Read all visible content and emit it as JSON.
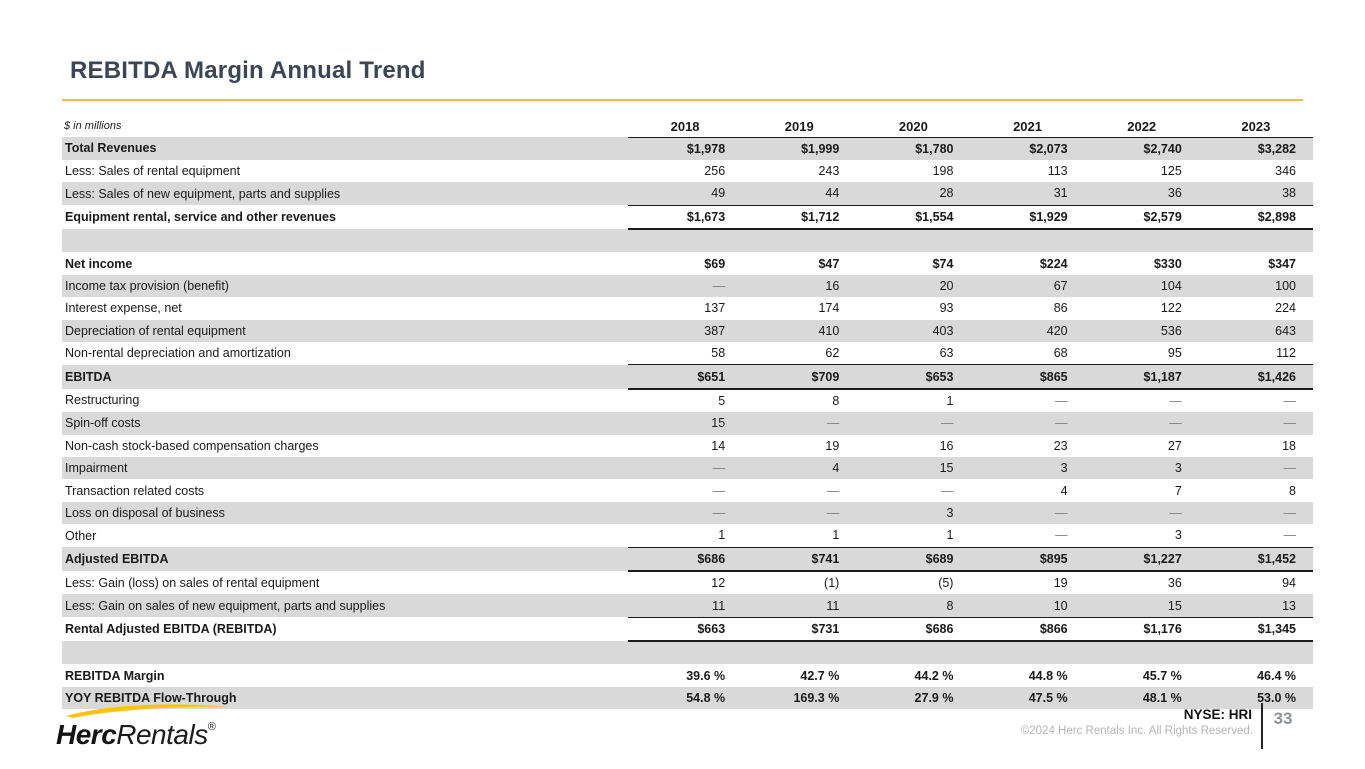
{
  "slide": {
    "title": "REBITDA Margin Annual Trend",
    "units_note": "$ in millions",
    "colors": {
      "title": "#3A4656",
      "accent_line": "#F2BA49",
      "row_stripe": "#D9D9D9",
      "brand_yellow": "#FFC20E",
      "dash_gray": "#7F7F7F"
    }
  },
  "table": {
    "years": [
      "2018",
      "2019",
      "2020",
      "2021",
      "2022",
      "2023"
    ],
    "rows": [
      {
        "label": "Total Revenues",
        "bold": true,
        "values": [
          "$1,978",
          "$1,999",
          "$1,780",
          "$2,073",
          "$2,740",
          "$3,282"
        ]
      },
      {
        "label": "Less: Sales of rental equipment",
        "values": [
          "256",
          "243",
          "198",
          "113",
          "125",
          "346"
        ]
      },
      {
        "label": "Less: Sales of new equipment, parts and supplies",
        "values": [
          "49",
          "44",
          "28",
          "31",
          "36",
          "38"
        ]
      },
      {
        "label": "Equipment rental, service and other revenues",
        "bold": true,
        "subtotal": true,
        "values": [
          "$1,673",
          "$1,712",
          "$1,554",
          "$1,929",
          "$2,579",
          "$2,898"
        ]
      },
      {
        "blank": true,
        "label": "",
        "values": [
          "",
          "",
          "",
          "",
          "",
          ""
        ]
      },
      {
        "label": "Net income",
        "bold": true,
        "values": [
          "$69",
          "$47",
          "$74",
          "$224",
          "$330",
          "$347"
        ]
      },
      {
        "label": "Income tax provision (benefit)",
        "values": [
          "—",
          "16",
          "20",
          "67",
          "104",
          "100"
        ]
      },
      {
        "label": "Interest expense, net",
        "values": [
          "137",
          "174",
          "93",
          "86",
          "122",
          "224"
        ]
      },
      {
        "label": "Depreciation of rental equipment",
        "values": [
          "387",
          "410",
          "403",
          "420",
          "536",
          "643"
        ]
      },
      {
        "label": "Non-rental depreciation and amortization",
        "values": [
          "58",
          "62",
          "63",
          "68",
          "95",
          "112"
        ]
      },
      {
        "label": "EBITDA",
        "bold": true,
        "subtotal": true,
        "values": [
          "$651",
          "$709",
          "$653",
          "$865",
          "$1,187",
          "$1,426"
        ]
      },
      {
        "label": "Restructuring",
        "values": [
          "5",
          "8",
          "1",
          "—",
          "—",
          "—"
        ]
      },
      {
        "label": "Spin-off costs",
        "values": [
          "15",
          "—",
          "—",
          "—",
          "—",
          "—"
        ]
      },
      {
        "label": "Non-cash stock-based compensation charges",
        "values": [
          "14",
          "19",
          "16",
          "23",
          "27",
          "18"
        ]
      },
      {
        "label": "Impairment",
        "values": [
          "—",
          "4",
          "15",
          "3",
          "3",
          "—"
        ]
      },
      {
        "label": "Transaction related costs",
        "values": [
          "—",
          "—",
          "—",
          "4",
          "7",
          "8"
        ]
      },
      {
        "label": "Loss on disposal of business",
        "values": [
          "—",
          "—",
          "3",
          "—",
          "—",
          "—"
        ]
      },
      {
        "label": "Other",
        "values": [
          "1",
          "1",
          "1",
          "—",
          "3",
          "—"
        ]
      },
      {
        "label": "Adjusted EBITDA",
        "bold": true,
        "subtotal": true,
        "values": [
          "$686",
          "$741",
          "$689",
          "$895",
          "$1,227",
          "$1,452"
        ]
      },
      {
        "label": "Less: Gain (loss) on sales of rental equipment",
        "values": [
          "12",
          "(1)",
          "(5)",
          "19",
          "36",
          "94"
        ]
      },
      {
        "label": "Less: Gain on sales of new equipment, parts and supplies",
        "values": [
          "11",
          "11",
          "8",
          "10",
          "15",
          "13"
        ]
      },
      {
        "label": "Rental Adjusted EBITDA (REBITDA)",
        "bold": true,
        "subtotal": true,
        "values": [
          "$663",
          "$731",
          "$686",
          "$866",
          "$1,176",
          "$1,345"
        ]
      },
      {
        "blank": true,
        "label": "",
        "values": [
          "",
          "",
          "",
          "",
          "",
          ""
        ]
      },
      {
        "label": "REBITDA Margin",
        "bold": true,
        "values": [
          "39.6 %",
          "42.7 %",
          "44.2 %",
          "44.8 %",
          "45.7 %",
          "46.4 %"
        ]
      },
      {
        "label": "YOY REBITDA Flow-Through",
        "bold": true,
        "values": [
          "54.8 %",
          "169.3 %",
          "27.9 %",
          "47.5 %",
          "48.1 %",
          "53.0 %"
        ]
      }
    ]
  },
  "footer": {
    "logo": {
      "herc": "Herc",
      "rentals": "Rentals",
      "registered_mark": "®"
    },
    "ticker": "NYSE: HRI",
    "copyright": "©2024 Herc Rentals Inc.  All Rights Reserved.",
    "page_number": "33"
  }
}
